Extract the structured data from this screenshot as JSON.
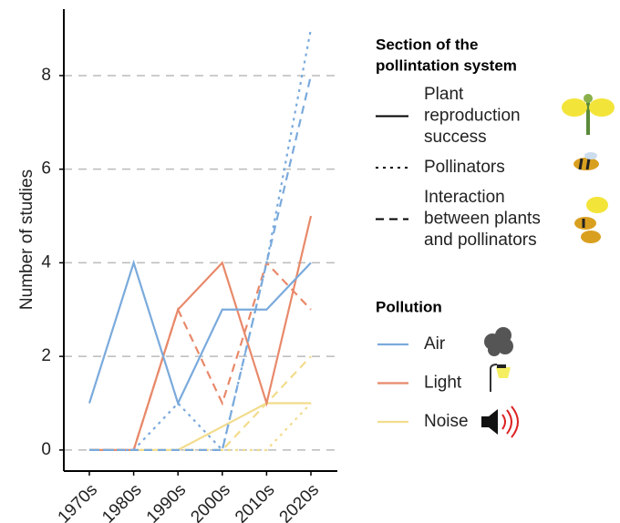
{
  "chart_data": {
    "type": "line",
    "y_label": "Number of studies",
    "categories": [
      "1970s",
      "1980s",
      "1990s",
      "2000s",
      "2010s",
      "2020s"
    ],
    "ylim": [
      -0.45,
      9.42
    ],
    "yticks": [
      0,
      2,
      4,
      6,
      8
    ],
    "grid": true,
    "series": [
      {
        "color": "#f2dc8c",
        "linestyle": "dotted",
        "values": [
          0,
          0,
          0,
          0,
          0,
          1
        ]
      },
      {
        "color": "#f2dc8c",
        "linestyle": "dashed",
        "values": [
          0,
          0,
          0,
          0,
          1,
          2
        ]
      },
      {
        "color": "#f2dc8c",
        "linestyle": "solid",
        "values": [
          0,
          0,
          0,
          0.5,
          1,
          1
        ]
      },
      {
        "color": "#e8896a",
        "linestyle": "dashed",
        "values": [
          0,
          0,
          3,
          1,
          4,
          3
        ]
      },
      {
        "color": "#e8896a",
        "linestyle": "solid",
        "values": [
          0,
          0,
          3,
          4,
          1,
          5
        ]
      },
      {
        "color": "#7aaadc",
        "linestyle": "dotted",
        "values": [
          0,
          0,
          1,
          0,
          4,
          9
        ]
      },
      {
        "color": "#7aaadc",
        "linestyle": "dashed",
        "values": [
          0,
          0,
          0,
          0,
          4,
          8
        ]
      },
      {
        "color": "#7aaadc",
        "linestyle": "solid",
        "values": [
          1,
          4,
          1,
          3,
          3,
          4
        ]
      }
    ],
    "linetype_legend": {
      "title": [
        "Section of the",
        "pollintation system"
      ],
      "entries": [
        {
          "label": [
            "Plant",
            "reproduction",
            "success"
          ],
          "linestyle": "solid"
        },
        {
          "label": [
            "Pollinators"
          ],
          "linestyle": "dotted"
        },
        {
          "label": [
            "Interaction",
            "between plants",
            "and pollinators"
          ],
          "linestyle": "dashed"
        }
      ]
    },
    "color_legend": {
      "title": "Pollution",
      "entries": [
        {
          "label": "Air",
          "color": "#7aaadc"
        },
        {
          "label": "Light",
          "color": "#e8896a"
        },
        {
          "label": "Noise",
          "color": "#f2dc8c"
        }
      ]
    }
  }
}
